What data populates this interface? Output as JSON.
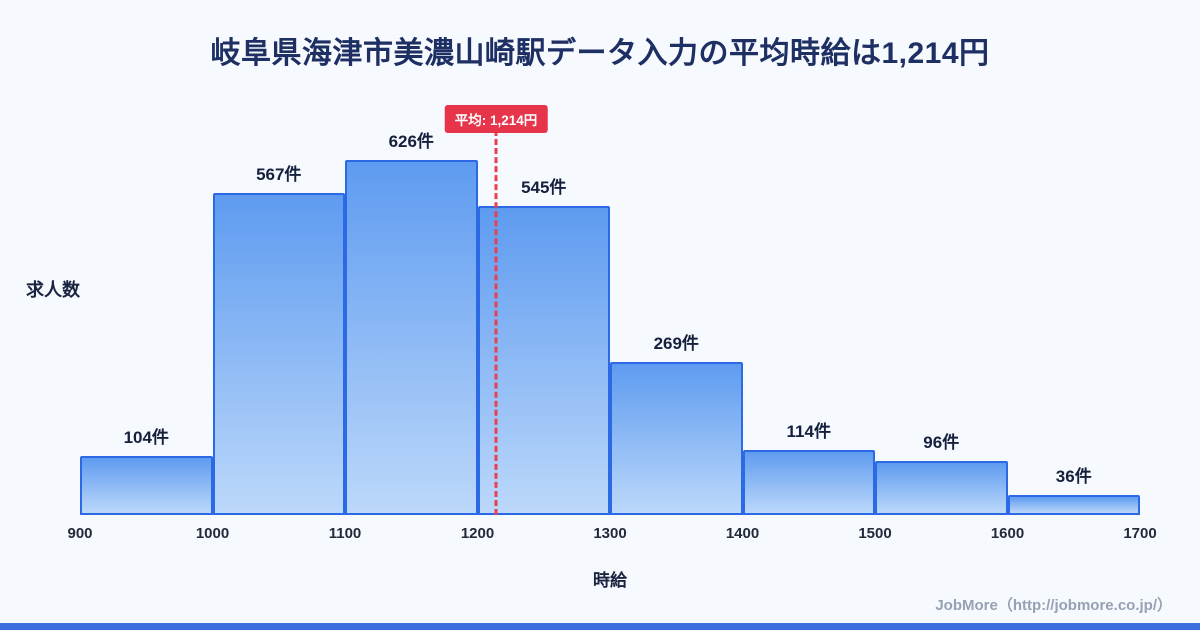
{
  "title": "岐阜県海津市美濃山崎駅データ入力の平均時給は1,214円",
  "chart_data": {
    "type": "bar",
    "title": "岐阜県海津市美濃山崎駅データ入力の平均時給は1,214円",
    "categories": [
      "900-1000",
      "1000-1100",
      "1100-1200",
      "1200-1300",
      "1300-1400",
      "1400-1500",
      "1500-1600",
      "1600-1700"
    ],
    "values": [
      104,
      567,
      626,
      545,
      269,
      114,
      96,
      36
    ],
    "value_labels": [
      "104件",
      "567件",
      "626件",
      "545件",
      "269件",
      "114件",
      "96件",
      "36件"
    ],
    "x_ticks": [
      "900",
      "1000",
      "1100",
      "1200",
      "1300",
      "1400",
      "1500",
      "1600",
      "1700"
    ],
    "xlim": [
      900,
      1700
    ],
    "ylim": [
      0,
      626
    ],
    "xlabel": "時給",
    "ylabel": "求人数",
    "average": 1214,
    "average_label": "平均: 1,214円",
    "legend": "none",
    "grid": false
  },
  "footer": {
    "credit": "JobMore（http://jobmore.co.jp/）"
  },
  "colors": {
    "background": "#f6f9fd",
    "title": "#1d2f63",
    "bar_fill_top": "#5e9bf0",
    "bar_fill_bottom": "#bcd8fa",
    "bar_border": "#2b6ae4",
    "average_line": "#e8404f",
    "average_badge_bg": "#e6344b",
    "average_badge_text": "#ffffff",
    "credit_text": "#97a1b3",
    "bottom_bar": "#3b6fe0"
  }
}
